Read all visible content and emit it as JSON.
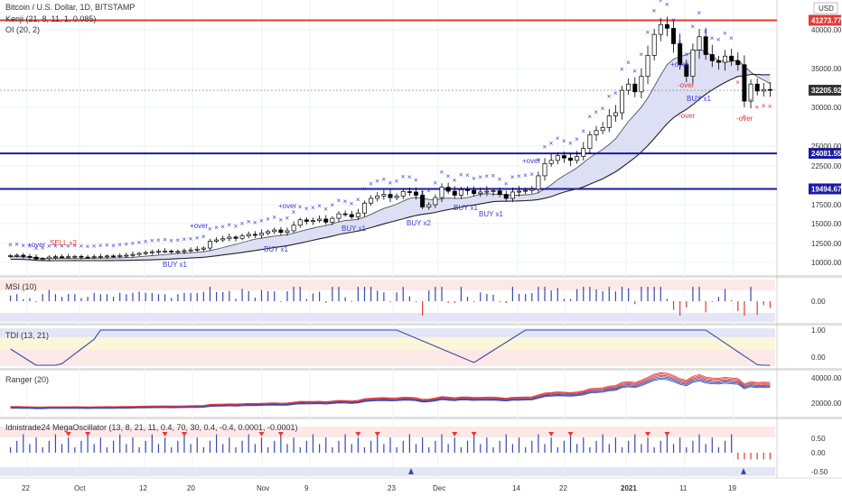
{
  "title": "Bitcoin / U.S. Dollar, 1D, BITSTAMP",
  "currency": "USD",
  "indicators": {
    "kenji": "Kenji (21, 8, 11, 1, 0.085)",
    "oi": "OI (20, 2)",
    "msi": "MSI (10)",
    "tdi": "TDI (13, 21)",
    "ranger": "Ranger (20)",
    "mega": "Idnistrade24 MegaOscillator (13, 8, 21, 11, 0.4, 70, 30, 0.4, -0.4, 0.0001, -0.0001)"
  },
  "colors": {
    "up": "#ffffff",
    "down": "#000000",
    "wick": "#000000",
    "resistance": "#e53935",
    "support": "#1a1aa6",
    "marker": "#3d3dd8",
    "band_fill": "#d9dcf3",
    "ranger_red": "#e53935",
    "ranger_blue": "#3949ab"
  },
  "price_axis": {
    "ticks": [
      "40000.00",
      "35000.00",
      "30000.00",
      "25000.00",
      "22500.00",
      "17500.00",
      "15000.00",
      "12500.00",
      "10000.00"
    ],
    "min": 8000,
    "max": 44000
  },
  "levels": [
    {
      "value": 41273.77,
      "label": "41273.77",
      "kind": "resistance"
    },
    {
      "value": 24081.55,
      "label": "24081.55",
      "kind": "support"
    },
    {
      "value": 19494.67,
      "label": "19494.67",
      "kind": "support"
    }
  ],
  "last_price": {
    "value": 32205.92,
    "label": "32205.92"
  },
  "x_axis": {
    "labels": [
      "22",
      "Oct",
      "12",
      "20",
      "Nov",
      "9",
      "23",
      "Dec",
      "14",
      "22",
      "2021",
      "11",
      "19"
    ]
  },
  "signals": [
    {
      "text": "+over",
      "color": "#3d3dd8"
    },
    {
      "text": "SELL x2",
      "color": "#e53935"
    },
    {
      "text": "BUY x1",
      "color": "#3d3dd8"
    },
    {
      "text": "+over",
      "color": "#3d3dd8"
    },
    {
      "text": "BUY x1",
      "color": "#3d3dd8"
    },
    {
      "text": "+over",
      "color": "#3d3dd8"
    },
    {
      "text": "BUY x1",
      "color": "#3d3dd8"
    },
    {
      "text": "BUY x2",
      "color": "#3d3dd8"
    },
    {
      "text": "BUY x1",
      "color": "#3d3dd8"
    },
    {
      "text": "BUY x1",
      "color": "#3d3dd8"
    },
    {
      "text": "+over",
      "color": "#3d3dd8"
    },
    {
      "text": "+over",
      "color": "#3d3dd8"
    },
    {
      "text": "-over",
      "color": "#e53935"
    },
    {
      "text": "BUY x1",
      "color": "#3d3dd8"
    },
    {
      "text": "-over",
      "color": "#e53935"
    },
    {
      "text": "-over",
      "color": "#e53935"
    }
  ],
  "pane_ticks": {
    "msi": [
      "0.00"
    ],
    "tdi": [
      "1.00",
      "0.00"
    ],
    "ranger": [
      "40000.00",
      "20000.00"
    ],
    "mega": [
      "0.50",
      "0.00",
      "-0.50"
    ]
  },
  "chart_data": {
    "type": "candlestick",
    "title": "Bitcoin / U.S. Dollar, 1D, BITSTAMP",
    "start": "2020-09-16",
    "close": [
      10900,
      10950,
      10800,
      10700,
      10450,
      10500,
      10700,
      10750,
      10700,
      10750,
      10800,
      10700,
      10650,
      10750,
      10800,
      10850,
      10800,
      10900,
      10950,
      11050,
      11200,
      11300,
      11400,
      11450,
      11500,
      11400,
      11450,
      11550,
      11650,
      11750,
      11900,
      12800,
      12950,
      13100,
      13300,
      13150,
      13450,
      13650,
      13550,
      13800,
      14000,
      14200,
      13900,
      14100,
      14800,
      15500,
      15300,
      15400,
      15600,
      15200,
      15700,
      16300,
      16200,
      15900,
      16400,
      17700,
      18300,
      18600,
      18800,
      18400,
      18600,
      19150,
      19100,
      18700,
      17200,
      17500,
      18400,
      19700,
      19200,
      18700,
      19400,
      19300,
      18900,
      19100,
      19200,
      19250,
      18800,
      18300,
      19100,
      19200,
      19300,
      19450,
      21200,
      22800,
      23200,
      23800,
      23500,
      23200,
      23700,
      24700,
      26450,
      27000,
      27400,
      28900,
      29300,
      32200,
      33000,
      32000,
      34000,
      36700,
      39400,
      40700,
      40200,
      38200,
      35500,
      34000,
      37400,
      39100,
      36800,
      36000,
      35800,
      36600,
      36000,
      35500,
      30800,
      33000,
      32100,
      32300,
      32206
    ],
    "ylim": [
      8000,
      44000
    ]
  }
}
